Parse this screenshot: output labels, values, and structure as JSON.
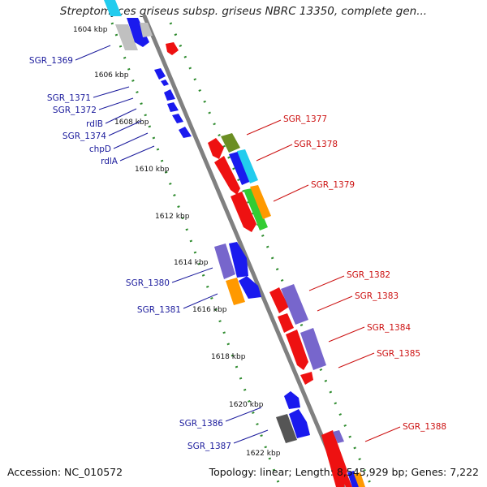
{
  "title": "Streptomyces griseus subsp. griseus NBRC 13350, complete gen...",
  "accession": "Accession: NC_010572",
  "stats": "Topology: linear; Length: 8,545,929 bp; Genes: 7,222",
  "colors": {
    "backbone": "#777777",
    "forward_dots": "#2e8b2e",
    "reverse_dots": "#2e8b2e",
    "label_blue": "#1a1a9c",
    "label_red": "#cc1111",
    "gene_red": "#ee1111",
    "gene_blue": "#1a1aee",
    "gene_purple": "#7766cc",
    "gene_orange": "#ff9900",
    "gene_olive": "#6b8e23",
    "gene_cyan": "#22ccee",
    "gene_green": "#33cc33",
    "gene_gray": "#555555",
    "gene_silver": "#c0c0c0"
  },
  "kbp_ticks": [
    "1604 kbp",
    "1606 kbp",
    "1608 kbp",
    "1610 kbp",
    "1612 kbp",
    "1614 kbp",
    "1616 kbp",
    "1618 kbp",
    "1620 kbp",
    "1622 kbp"
  ],
  "left_labels": [
    "SGR_1369",
    "SGR_1371",
    "SGR_1372",
    "rdlB",
    "SGR_1374",
    "chpD",
    "rdlA",
    "SGR_1380",
    "SGR_1381",
    "SGR_1386",
    "SGR_1387"
  ],
  "right_labels": [
    "SGR_1377",
    "SGR_1378",
    "SGR_1379",
    "SGR_1382",
    "SGR_1383",
    "SGR_1384",
    "SGR_1385",
    "SGR_1388"
  ]
}
